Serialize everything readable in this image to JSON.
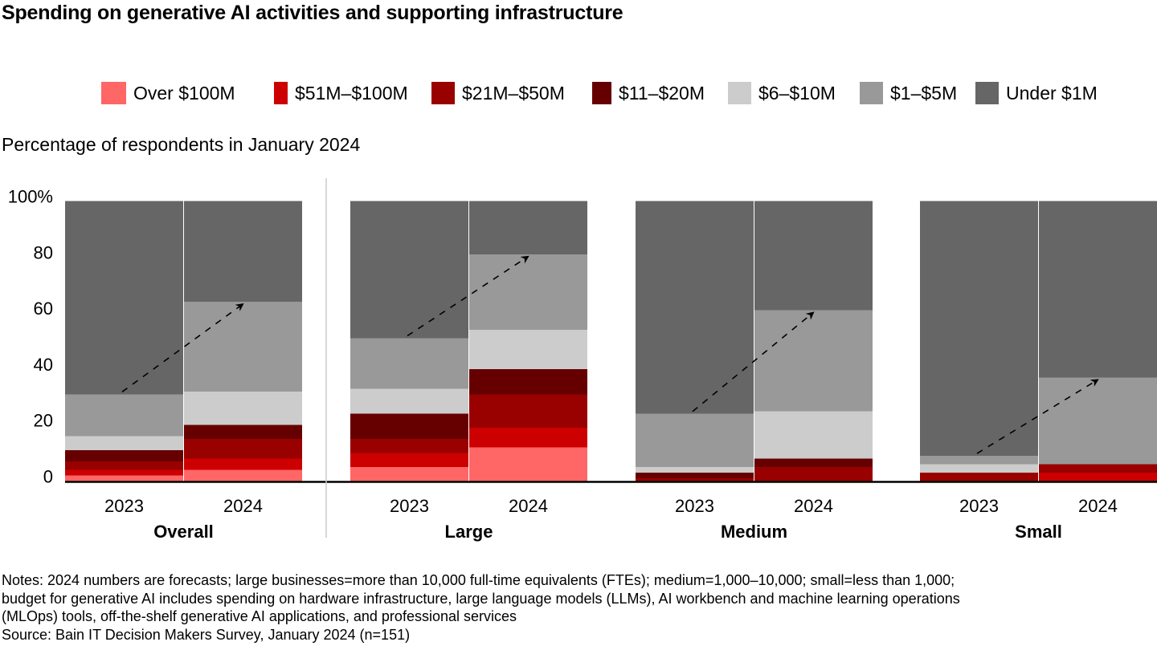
{
  "title": "Spending on generative AI activities and supporting infrastructure",
  "subtitle": "Percentage of respondents in January 2024",
  "notes": [
    "Notes: 2024 numbers are forecasts; large businesses=more than 10,000 full-time equivalents (FTEs); medium=1,000–10,000; small=less than 1,000;",
    "budget for generative AI includes spending on hardware infrastructure, large language models (LLMs), AI workbench and machine learning operations",
    "(MLOps) tools, off-the-shelf generative AI applications, and professional services",
    "Source: Bain IT Decision Makers Survey, January 2024 (n=151)"
  ],
  "chart_data": {
    "type": "bar",
    "stacked": true,
    "title": "Spending on generative AI activities and supporting infrastructure",
    "ylabel": "Percentage of respondents in January 2024",
    "xlabel": "",
    "ylim": [
      0,
      100
    ],
    "yticks": [
      0,
      20,
      40,
      60,
      80,
      100
    ],
    "ytick_labels": [
      "0",
      "20",
      "40",
      "60",
      "80",
      "100%"
    ],
    "legend_position": "top",
    "grid": false,
    "groups": [
      "Overall",
      "Large",
      "Medium",
      "Small"
    ],
    "categories": [
      "2023",
      "2024"
    ],
    "series": [
      {
        "name": "Over $100M",
        "color": "#ff6666",
        "values": {
          "Overall": [
            2,
            4
          ],
          "Large": [
            5,
            12
          ],
          "Medium": [
            0,
            0
          ],
          "Small": [
            0,
            0
          ]
        }
      },
      {
        "name": "$51M–$100M",
        "color": "#cc0000",
        "values": {
          "Overall": [
            2,
            4
          ],
          "Large": [
            5,
            7
          ],
          "Medium": [
            0,
            0
          ],
          "Small": [
            0,
            3
          ]
        }
      },
      {
        "name": "$21M–$50M",
        "color": "#990000",
        "values": {
          "Overall": [
            3,
            7
          ],
          "Large": [
            5,
            12
          ],
          "Medium": [
            1,
            5
          ],
          "Small": [
            3,
            3
          ]
        }
      },
      {
        "name": "$11–$20M",
        "color": "#660000",
        "values": {
          "Overall": [
            4,
            5
          ],
          "Large": [
            9,
            9
          ],
          "Medium": [
            2,
            3
          ],
          "Small": [
            0,
            0
          ]
        }
      },
      {
        "name": "$6–$10M",
        "color": "#cccccc",
        "values": {
          "Overall": [
            5,
            12
          ],
          "Large": [
            9,
            14
          ],
          "Medium": [
            2,
            17
          ],
          "Small": [
            3,
            0
          ]
        }
      },
      {
        "name": "$1–$5M",
        "color": "#999999",
        "values": {
          "Overall": [
            15,
            32
          ],
          "Large": [
            18,
            27
          ],
          "Medium": [
            19,
            36
          ],
          "Small": [
            3,
            31
          ]
        }
      },
      {
        "name": "Under $1M",
        "color": "#666666",
        "values": {
          "Overall": [
            69,
            36
          ],
          "Large": [
            49,
            19
          ],
          "Medium": [
            76,
            39
          ],
          "Small": [
            91,
            63
          ]
        }
      }
    ],
    "annotations": [
      {
        "type": "dashed-arrow",
        "group": "Overall",
        "from": "2023 top of $1–$5M",
        "to": "2024 top of $1–$5M"
      },
      {
        "type": "dashed-arrow",
        "group": "Large",
        "from": "2023 top of $1–$5M",
        "to": "2024 top of $1–$5M"
      },
      {
        "type": "dashed-arrow",
        "group": "Medium",
        "from": "2023 top of $1–$5M",
        "to": "2024 top of $1–$5M"
      },
      {
        "type": "dashed-arrow",
        "group": "Small",
        "from": "2023 top of $1–$5M",
        "to": "2024 top of $1–$5M"
      }
    ]
  }
}
